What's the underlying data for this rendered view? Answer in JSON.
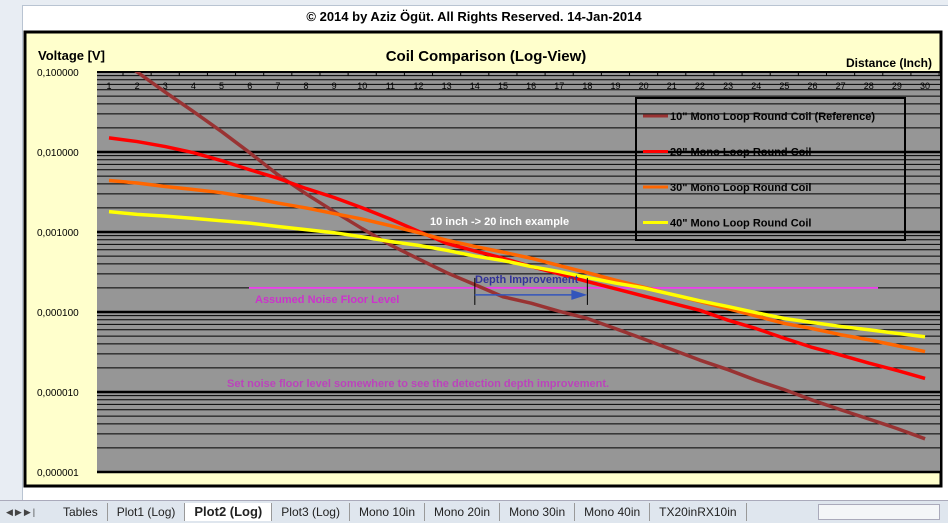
{
  "copyright": "© 2014 by Aziz Ögüt. All Rights Reserved. 14-Jan-2014",
  "tabs": [
    "Tables",
    "Plot1 (Log)",
    "Plot2 (Log)",
    "Plot3 (Log)",
    "Mono 10in",
    "Mono 20in",
    "Mono 30in",
    "Mono 40in",
    "TX20inRX10in"
  ],
  "active_tab": "Plot2 (Log)",
  "chart_data": {
    "type": "line",
    "title": "Coil Comparison (Log-View)",
    "ylabel": "Voltage [V]",
    "xlabel": "Distance  (Inch)",
    "y_scale": "log",
    "ylim": [
      1e-06,
      0.1
    ],
    "y_ticks": [
      "0,100000",
      "0,010000",
      "0,001000",
      "0,000100",
      "0,000010",
      "0,000001"
    ],
    "x": [
      1,
      2,
      3,
      4,
      5,
      6,
      7,
      8,
      9,
      10,
      11,
      12,
      13,
      14,
      15,
      16,
      17,
      18,
      19,
      20,
      21,
      22,
      23,
      24,
      25,
      26,
      27,
      28,
      29,
      30
    ],
    "legend_position": "top-right",
    "grid": true,
    "series": [
      {
        "name": "10\" Mono Loop Round Coil (Reference)",
        "color": "#993333",
        "values": [
          0.18,
          0.1,
          0.056,
          0.032,
          0.018,
          0.0098,
          0.0052,
          0.003,
          0.0018,
          0.0011,
          0.00069,
          0.00046,
          0.00031,
          0.00022,
          0.000155,
          0.000129,
          0.000102,
          8.3e-05,
          6.2e-05,
          4.6e-05,
          3.4e-05,
          2.5e-05,
          1.9e-05,
          1.4e-05,
          1.07e-05,
          7.9e-06,
          6e-06,
          4.6e-06,
          3.5e-06,
          2.6e-06
        ]
      },
      {
        "name": "20\" Mono Loop Round Coil",
        "color": "#ff0000",
        "values": [
          0.015,
          0.0135,
          0.0117,
          0.0098,
          0.0078,
          0.006,
          0.0047,
          0.0035,
          0.0027,
          0.002,
          0.00145,
          0.00102,
          0.00072,
          0.00058,
          0.00047,
          0.00037,
          0.0003,
          0.00024,
          0.000195,
          0.000158,
          0.000129,
          0.000105,
          7.9e-05,
          6.2e-05,
          4.7e-05,
          3.6e-05,
          2.9e-05,
          2.3e-05,
          1.86e-05,
          1.48e-05
        ]
      },
      {
        "name": "30\" Mono Loop Round Coil",
        "color": "#ff6600",
        "values": [
          0.0044,
          0.0041,
          0.0037,
          0.0034,
          0.0031,
          0.0027,
          0.0023,
          0.002,
          0.0017,
          0.00145,
          0.0012,
          0.00098,
          0.00079,
          0.00066,
          0.00056,
          0.00047,
          0.00038,
          0.00031,
          0.00025,
          0.000204,
          0.000166,
          0.000135,
          0.00011,
          8.9e-05,
          7.2e-05,
          6.2e-05,
          5.2e-05,
          4.5e-05,
          3.8e-05,
          3.2e-05
        ]
      },
      {
        "name": "40\" Mono Loop Round Coil",
        "color": "#ffff00",
        "values": [
          0.0018,
          0.00166,
          0.00158,
          0.00148,
          0.00138,
          0.00129,
          0.00117,
          0.00107,
          0.00098,
          0.00087,
          0.00076,
          0.00068,
          0.00059,
          0.0005,
          0.00044,
          0.00037,
          0.00032,
          0.00027,
          0.00023,
          0.0002,
          0.000166,
          0.000138,
          0.000117,
          9.8e-05,
          8.3e-05,
          7.4e-05,
          6.6e-05,
          6e-05,
          5.4e-05,
          4.9e-05
        ]
      }
    ],
    "annotations": {
      "noise_floor_label": "Assumed Noise Floor Level",
      "noise_floor_value": 0.0002,
      "noise_floor_color": "#ff33ff",
      "depth_label": "Depth Improvement",
      "depth_from_inch": 14,
      "depth_to_inch": 18,
      "example_label": "10 inch -> 20 inch example",
      "hint": "Set noise floor level somewhere to see the detection depth improvement."
    },
    "plot_background": "#969696"
  }
}
